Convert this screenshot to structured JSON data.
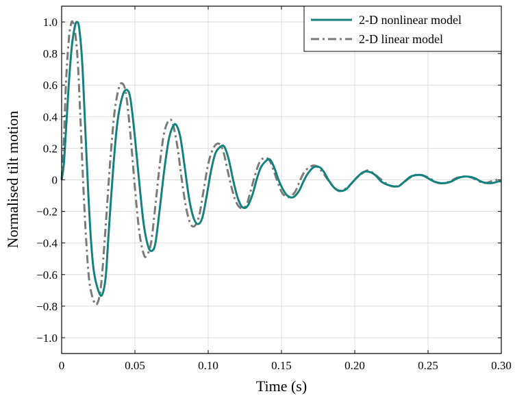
{
  "chart_data": {
    "type": "line",
    "title": "",
    "xlabel": "Time (s)",
    "ylabel": "Normalised tilt motion",
    "xlim": [
      0,
      0.3
    ],
    "ylim": [
      -1.1,
      1.1
    ],
    "x_ticks": [
      0,
      0.05,
      0.1,
      0.15,
      0.2,
      0.25,
      0.3
    ],
    "x_tick_labels": [
      "0",
      "0.05",
      "0.10",
      "0.15",
      "0.20",
      "0.25",
      "0.30"
    ],
    "y_ticks": [
      1.0,
      0.8,
      0.6,
      0.4,
      0.2,
      0,
      -0.2,
      -0.4,
      -0.6,
      -0.8,
      -1.0
    ],
    "y_tick_labels": [
      "1.0",
      "0.8",
      "0.6",
      "0.4",
      "0.2",
      "0",
      "−0.2",
      "−0.4",
      "−0.6",
      "−0.8",
      "−1.0"
    ],
    "grid": true,
    "legend_position": "top-right",
    "series": [
      {
        "name": "2-D nonlinear model",
        "color": "#14827c",
        "style": "solid",
        "points": [
          [
            0,
            0
          ],
          [
            0.0015,
            0.1
          ],
          [
            0.003,
            0.32
          ],
          [
            0.005,
            0.62
          ],
          [
            0.007,
            0.85
          ],
          [
            0.009,
            0.97
          ],
          [
            0.0105,
            1.0
          ],
          [
            0.012,
            0.96
          ],
          [
            0.014,
            0.75
          ],
          [
            0.016,
            0.35
          ],
          [
            0.018,
            -0.05
          ],
          [
            0.02,
            -0.38
          ],
          [
            0.022,
            -0.58
          ],
          [
            0.025,
            -0.7
          ],
          [
            0.0275,
            -0.73
          ],
          [
            0.03,
            -0.62
          ],
          [
            0.032,
            -0.35
          ],
          [
            0.035,
            0.05
          ],
          [
            0.038,
            0.36
          ],
          [
            0.0415,
            0.53
          ],
          [
            0.0445,
            0.57
          ],
          [
            0.047,
            0.51
          ],
          [
            0.05,
            0.27
          ],
          [
            0.053,
            -0.02
          ],
          [
            0.056,
            -0.28
          ],
          [
            0.059,
            -0.42
          ],
          [
            0.0615,
            -0.45
          ],
          [
            0.064,
            -0.4
          ],
          [
            0.067,
            -0.18
          ],
          [
            0.07,
            0.06
          ],
          [
            0.073,
            0.25
          ],
          [
            0.0755,
            0.33
          ],
          [
            0.078,
            0.35
          ],
          [
            0.081,
            0.27
          ],
          [
            0.084,
            0.08
          ],
          [
            0.087,
            -0.12
          ],
          [
            0.09,
            -0.24
          ],
          [
            0.093,
            -0.28
          ],
          [
            0.096,
            -0.24
          ],
          [
            0.099,
            -0.1
          ],
          [
            0.102,
            0.06
          ],
          [
            0.105,
            0.17
          ],
          [
            0.1085,
            0.21
          ],
          [
            0.111,
            0.21
          ],
          [
            0.114,
            0.13
          ],
          [
            0.117,
            0.0
          ],
          [
            0.12,
            -0.11
          ],
          [
            0.123,
            -0.17
          ],
          [
            0.1265,
            -0.17
          ],
          [
            0.13,
            -0.1
          ],
          [
            0.133,
            0.0
          ],
          [
            0.136,
            0.08
          ],
          [
            0.1395,
            0.12
          ],
          [
            0.142,
            0.13
          ],
          [
            0.145,
            0.08
          ],
          [
            0.148,
            0.0
          ],
          [
            0.151,
            -0.06
          ],
          [
            0.154,
            -0.1
          ],
          [
            0.158,
            -0.11
          ],
          [
            0.162,
            -0.07
          ],
          [
            0.165,
            -0.01
          ],
          [
            0.168,
            0.04
          ],
          [
            0.172,
            0.08
          ],
          [
            0.176,
            0.08
          ],
          [
            0.179,
            0.05
          ],
          [
            0.182,
            0.0
          ],
          [
            0.186,
            -0.05
          ],
          [
            0.19,
            -0.07
          ],
          [
            0.194,
            -0.06
          ],
          [
            0.198,
            -0.02
          ],
          [
            0.202,
            0.02
          ],
          [
            0.206,
            0.05
          ],
          [
            0.21,
            0.05
          ],
          [
            0.214,
            0.03
          ],
          [
            0.218,
            -0.01
          ],
          [
            0.222,
            -0.03
          ],
          [
            0.226,
            -0.04
          ],
          [
            0.23,
            -0.04
          ],
          [
            0.234,
            -0.01
          ],
          [
            0.238,
            0.02
          ],
          [
            0.242,
            0.03
          ],
          [
            0.246,
            0.03
          ],
          [
            0.25,
            0.01
          ],
          [
            0.254,
            -0.01
          ],
          [
            0.258,
            -0.02
          ],
          [
            0.262,
            -0.02
          ],
          [
            0.266,
            -0.01
          ],
          [
            0.27,
            0.01
          ],
          [
            0.274,
            0.02
          ],
          [
            0.278,
            0.02
          ],
          [
            0.282,
            0.01
          ],
          [
            0.286,
            -0.01
          ],
          [
            0.29,
            -0.02
          ],
          [
            0.294,
            -0.02
          ],
          [
            0.298,
            -0.01
          ],
          [
            0.3,
            -0.01
          ]
        ]
      },
      {
        "name": "2-D linear model",
        "color": "#7a7a7a",
        "style": "dash-dot",
        "points": [
          [
            0,
            0
          ],
          [
            0.0015,
            0.25
          ],
          [
            0.003,
            0.62
          ],
          [
            0.005,
            0.9
          ],
          [
            0.0065,
            0.99
          ],
          [
            0.0075,
            1.0
          ],
          [
            0.009,
            0.95
          ],
          [
            0.011,
            0.75
          ],
          [
            0.013,
            0.35
          ],
          [
            0.015,
            -0.08
          ],
          [
            0.017,
            -0.42
          ],
          [
            0.019,
            -0.65
          ],
          [
            0.022,
            -0.77
          ],
          [
            0.0245,
            -0.78
          ],
          [
            0.027,
            -0.66
          ],
          [
            0.03,
            -0.3
          ],
          [
            0.033,
            0.1
          ],
          [
            0.036,
            0.42
          ],
          [
            0.039,
            0.58
          ],
          [
            0.0415,
            0.61
          ],
          [
            0.044,
            0.54
          ],
          [
            0.047,
            0.28
          ],
          [
            0.05,
            -0.05
          ],
          [
            0.053,
            -0.33
          ],
          [
            0.056,
            -0.47
          ],
          [
            0.058,
            -0.48
          ],
          [
            0.061,
            -0.4
          ],
          [
            0.064,
            -0.16
          ],
          [
            0.067,
            0.1
          ],
          [
            0.07,
            0.3
          ],
          [
            0.0735,
            0.38
          ],
          [
            0.076,
            0.35
          ],
          [
            0.079,
            0.21
          ],
          [
            0.082,
            0.0
          ],
          [
            0.085,
            -0.18
          ],
          [
            0.088,
            -0.28
          ],
          [
            0.091,
            -0.29
          ],
          [
            0.094,
            -0.22
          ],
          [
            0.097,
            -0.06
          ],
          [
            0.1,
            0.1
          ],
          [
            0.1035,
            0.2
          ],
          [
            0.107,
            0.23
          ],
          [
            0.11,
            0.19
          ],
          [
            0.113,
            0.07
          ],
          [
            0.116,
            -0.05
          ],
          [
            0.119,
            -0.14
          ],
          [
            0.1225,
            -0.18
          ],
          [
            0.126,
            -0.16
          ],
          [
            0.129,
            -0.07
          ],
          [
            0.132,
            0.03
          ],
          [
            0.135,
            0.11
          ],
          [
            0.1385,
            0.14
          ],
          [
            0.142,
            0.12
          ],
          [
            0.145,
            0.05
          ],
          [
            0.148,
            -0.03
          ],
          [
            0.151,
            -0.09
          ],
          [
            0.155,
            -0.11
          ],
          [
            0.159,
            -0.08
          ],
          [
            0.162,
            -0.02
          ],
          [
            0.165,
            0.04
          ],
          [
            0.169,
            0.08
          ],
          [
            0.173,
            0.09
          ],
          [
            0.177,
            0.06
          ],
          [
            0.181,
            0.01
          ],
          [
            0.185,
            -0.04
          ],
          [
            0.189,
            -0.07
          ],
          [
            0.193,
            -0.06
          ],
          [
            0.197,
            -0.03
          ],
          [
            0.201,
            0.01
          ],
          [
            0.205,
            0.04
          ],
          [
            0.209,
            0.06
          ],
          [
            0.213,
            0.04
          ],
          [
            0.217,
            0.01
          ],
          [
            0.221,
            -0.02
          ],
          [
            0.225,
            -0.04
          ],
          [
            0.229,
            -0.04
          ],
          [
            0.233,
            -0.02
          ],
          [
            0.237,
            0.01
          ],
          [
            0.241,
            0.03
          ],
          [
            0.245,
            0.03
          ],
          [
            0.249,
            0.02
          ],
          [
            0.253,
            0.0
          ],
          [
            0.257,
            -0.02
          ],
          [
            0.261,
            -0.02
          ],
          [
            0.265,
            -0.01
          ],
          [
            0.269,
            0.01
          ],
          [
            0.273,
            0.02
          ],
          [
            0.277,
            0.02
          ],
          [
            0.281,
            0.01
          ],
          [
            0.285,
            -0.01
          ],
          [
            0.289,
            -0.02
          ],
          [
            0.293,
            -0.01
          ],
          [
            0.297,
            0.0
          ],
          [
            0.3,
            0.0
          ]
        ]
      }
    ]
  }
}
